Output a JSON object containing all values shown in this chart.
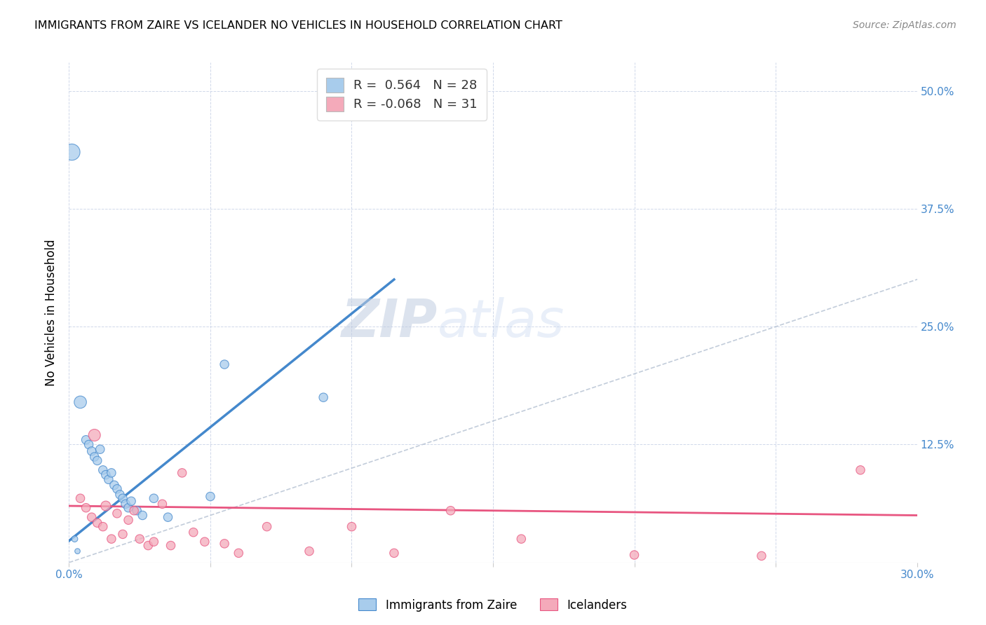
{
  "title": "IMMIGRANTS FROM ZAIRE VS ICELANDER NO VEHICLES IN HOUSEHOLD CORRELATION CHART",
  "source": "Source: ZipAtlas.com",
  "ylabel": "No Vehicles in Household",
  "x_label_blue": "Immigrants from Zaire",
  "x_label_pink": "Icelanders",
  "xlim": [
    0.0,
    0.3
  ],
  "ylim": [
    0.0,
    0.53
  ],
  "xticks": [
    0.0,
    0.05,
    0.1,
    0.15,
    0.2,
    0.25,
    0.3
  ],
  "yticks": [
    0.0,
    0.125,
    0.25,
    0.375,
    0.5
  ],
  "ytick_labels_right": [
    "",
    "12.5%",
    "25.0%",
    "37.5%",
    "50.0%"
  ],
  "R_blue": 0.564,
  "N_blue": 28,
  "R_pink": -0.068,
  "N_pink": 31,
  "blue_scatter_x": [
    0.001,
    0.004,
    0.006,
    0.007,
    0.008,
    0.009,
    0.01,
    0.011,
    0.012,
    0.013,
    0.014,
    0.015,
    0.016,
    0.017,
    0.018,
    0.019,
    0.02,
    0.021,
    0.022,
    0.024,
    0.026,
    0.03,
    0.035,
    0.05,
    0.055,
    0.09,
    0.002,
    0.003
  ],
  "blue_scatter_y": [
    0.435,
    0.17,
    0.13,
    0.125,
    0.118,
    0.112,
    0.108,
    0.12,
    0.098,
    0.093,
    0.088,
    0.095,
    0.082,
    0.078,
    0.072,
    0.068,
    0.062,
    0.058,
    0.065,
    0.055,
    0.05,
    0.068,
    0.048,
    0.07,
    0.21,
    0.175,
    0.025,
    0.012
  ],
  "blue_scatter_size": [
    280,
    160,
    80,
    80,
    80,
    80,
    80,
    80,
    80,
    80,
    80,
    80,
    80,
    80,
    80,
    80,
    80,
    80,
    80,
    80,
    80,
    80,
    80,
    80,
    80,
    80,
    40,
    30
  ],
  "pink_scatter_x": [
    0.004,
    0.006,
    0.008,
    0.009,
    0.01,
    0.012,
    0.013,
    0.015,
    0.017,
    0.019,
    0.021,
    0.023,
    0.025,
    0.028,
    0.03,
    0.033,
    0.036,
    0.04,
    0.044,
    0.048,
    0.055,
    0.06,
    0.07,
    0.085,
    0.1,
    0.115,
    0.135,
    0.16,
    0.2,
    0.245,
    0.28
  ],
  "pink_scatter_y": [
    0.068,
    0.058,
    0.048,
    0.135,
    0.042,
    0.038,
    0.06,
    0.025,
    0.052,
    0.03,
    0.045,
    0.055,
    0.025,
    0.018,
    0.022,
    0.062,
    0.018,
    0.095,
    0.032,
    0.022,
    0.02,
    0.01,
    0.038,
    0.012,
    0.038,
    0.01,
    0.055,
    0.025,
    0.008,
    0.007,
    0.098
  ],
  "pink_scatter_size": [
    80,
    80,
    80,
    150,
    80,
    80,
    100,
    80,
    80,
    80,
    80,
    80,
    80,
    80,
    80,
    80,
    80,
    80,
    80,
    80,
    80,
    80,
    80,
    80,
    80,
    80,
    80,
    80,
    80,
    80,
    80
  ],
  "blue_line_start_x": 0.0,
  "blue_line_start_y": 0.023,
  "blue_line_end_x": 0.115,
  "blue_line_end_y": 0.3,
  "pink_line_start_x": 0.0,
  "pink_line_start_y": 0.06,
  "pink_line_end_x": 0.3,
  "pink_line_end_y": 0.05,
  "blue_color": "#A8CCEC",
  "pink_color": "#F4AABA",
  "blue_line_color": "#4488CC",
  "pink_line_color": "#E85580",
  "diag_line_color": "#B8C4D4",
  "grid_color": "#D0D8EA",
  "watermark_zip": "ZIP",
  "watermark_atlas": "atlas",
  "background_color": "#FFFFFF",
  "accent_color": "#4488CC"
}
